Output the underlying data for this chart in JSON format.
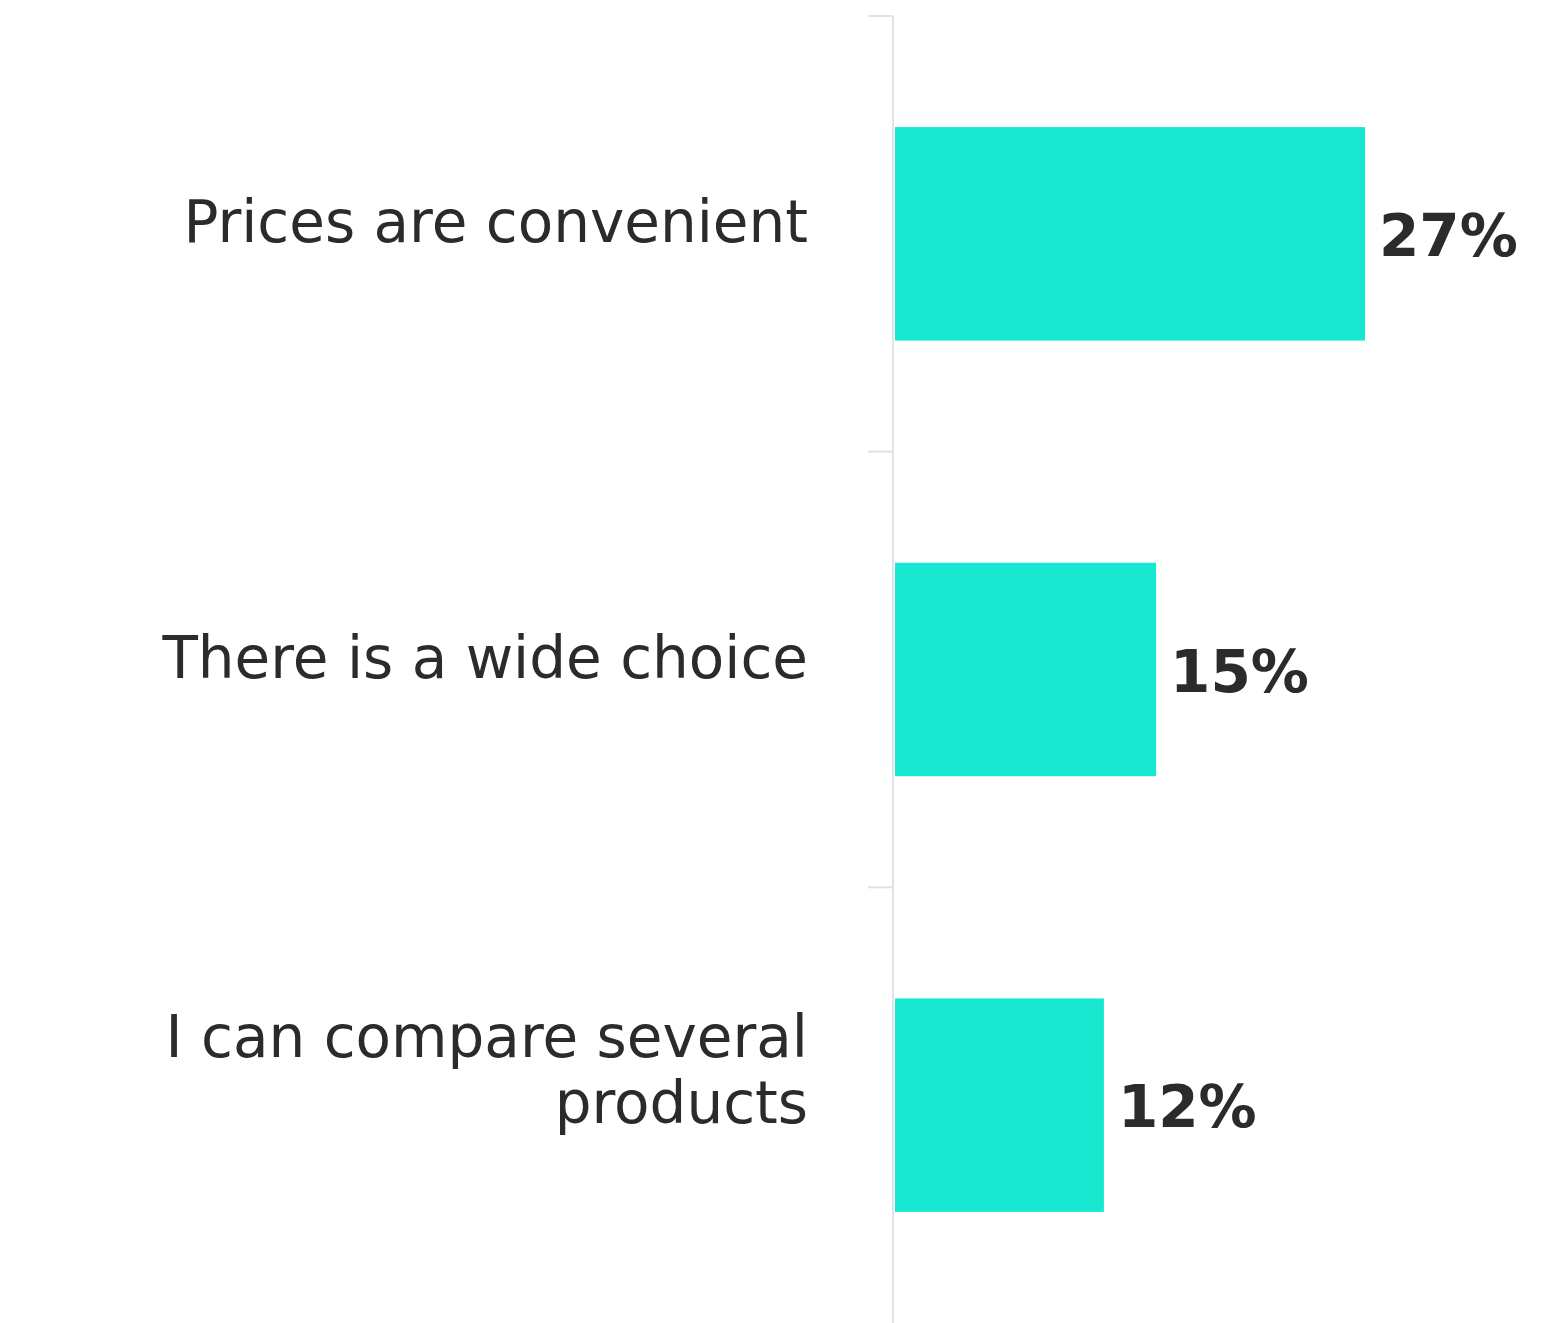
{
  "chart_data": {
    "type": "bar",
    "orientation": "horizontal",
    "categories": [
      "Prices are convenient",
      "There is a wide choice",
      "I can compare several products"
    ],
    "values": [
      27,
      15,
      12
    ],
    "color": "#17e8cf",
    "value_labels": [
      "27%",
      "15%",
      "12%"
    ]
  }
}
